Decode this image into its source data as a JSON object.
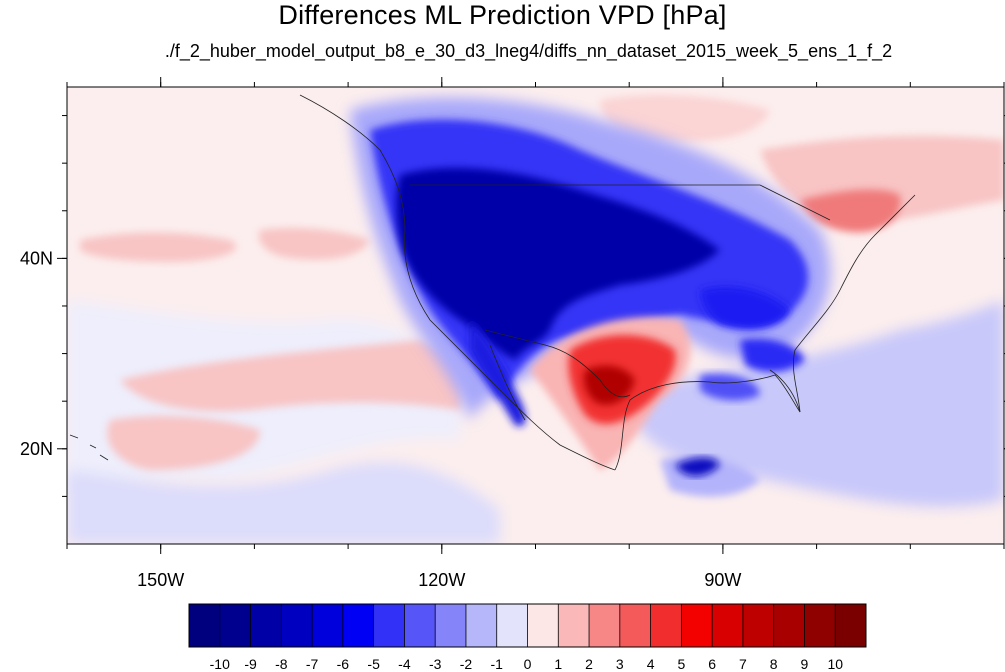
{
  "title": "Differences ML Prediction VPD [hPa]",
  "subtitle": "./f_2_huber_model_output_b8_e_30_d3_lneg4/diffs_nn_dataset_2015_week_5_ens_1_f_2",
  "map": {
    "lon_range": [
      -160,
      -60
    ],
    "lat_range": [
      10,
      58
    ],
    "x_ticks": [
      {
        "lon": -150,
        "label": "150W"
      },
      {
        "lon": -120,
        "label": "120W"
      },
      {
        "lon": -90,
        "label": "90W"
      }
    ],
    "y_ticks": [
      {
        "lat": 40,
        "label": "40N"
      },
      {
        "lat": 20,
        "label": "20N"
      }
    ]
  },
  "colorbar": {
    "labels": [
      "-10",
      "-9",
      "-8",
      "-7",
      "-6",
      "-5",
      "-4",
      "-3",
      "-2",
      "-1",
      "0",
      "1",
      "2",
      "3",
      "4",
      "5",
      "6",
      "7",
      "8",
      "9",
      "10"
    ],
    "colors": [
      "#00007f",
      "#00008f",
      "#0000a7",
      "#0000c0",
      "#0000dc",
      "#0000f5",
      "#3131f7",
      "#5555f8",
      "#8585f9",
      "#b6b6fb",
      "#e3e3fb",
      "#fce6e6",
      "#fab8b8",
      "#f78787",
      "#f45a5a",
      "#f22d2d",
      "#f30000",
      "#d80000",
      "#bf0000",
      "#a80000",
      "#8f0000",
      "#7a0000"
    ]
  }
}
